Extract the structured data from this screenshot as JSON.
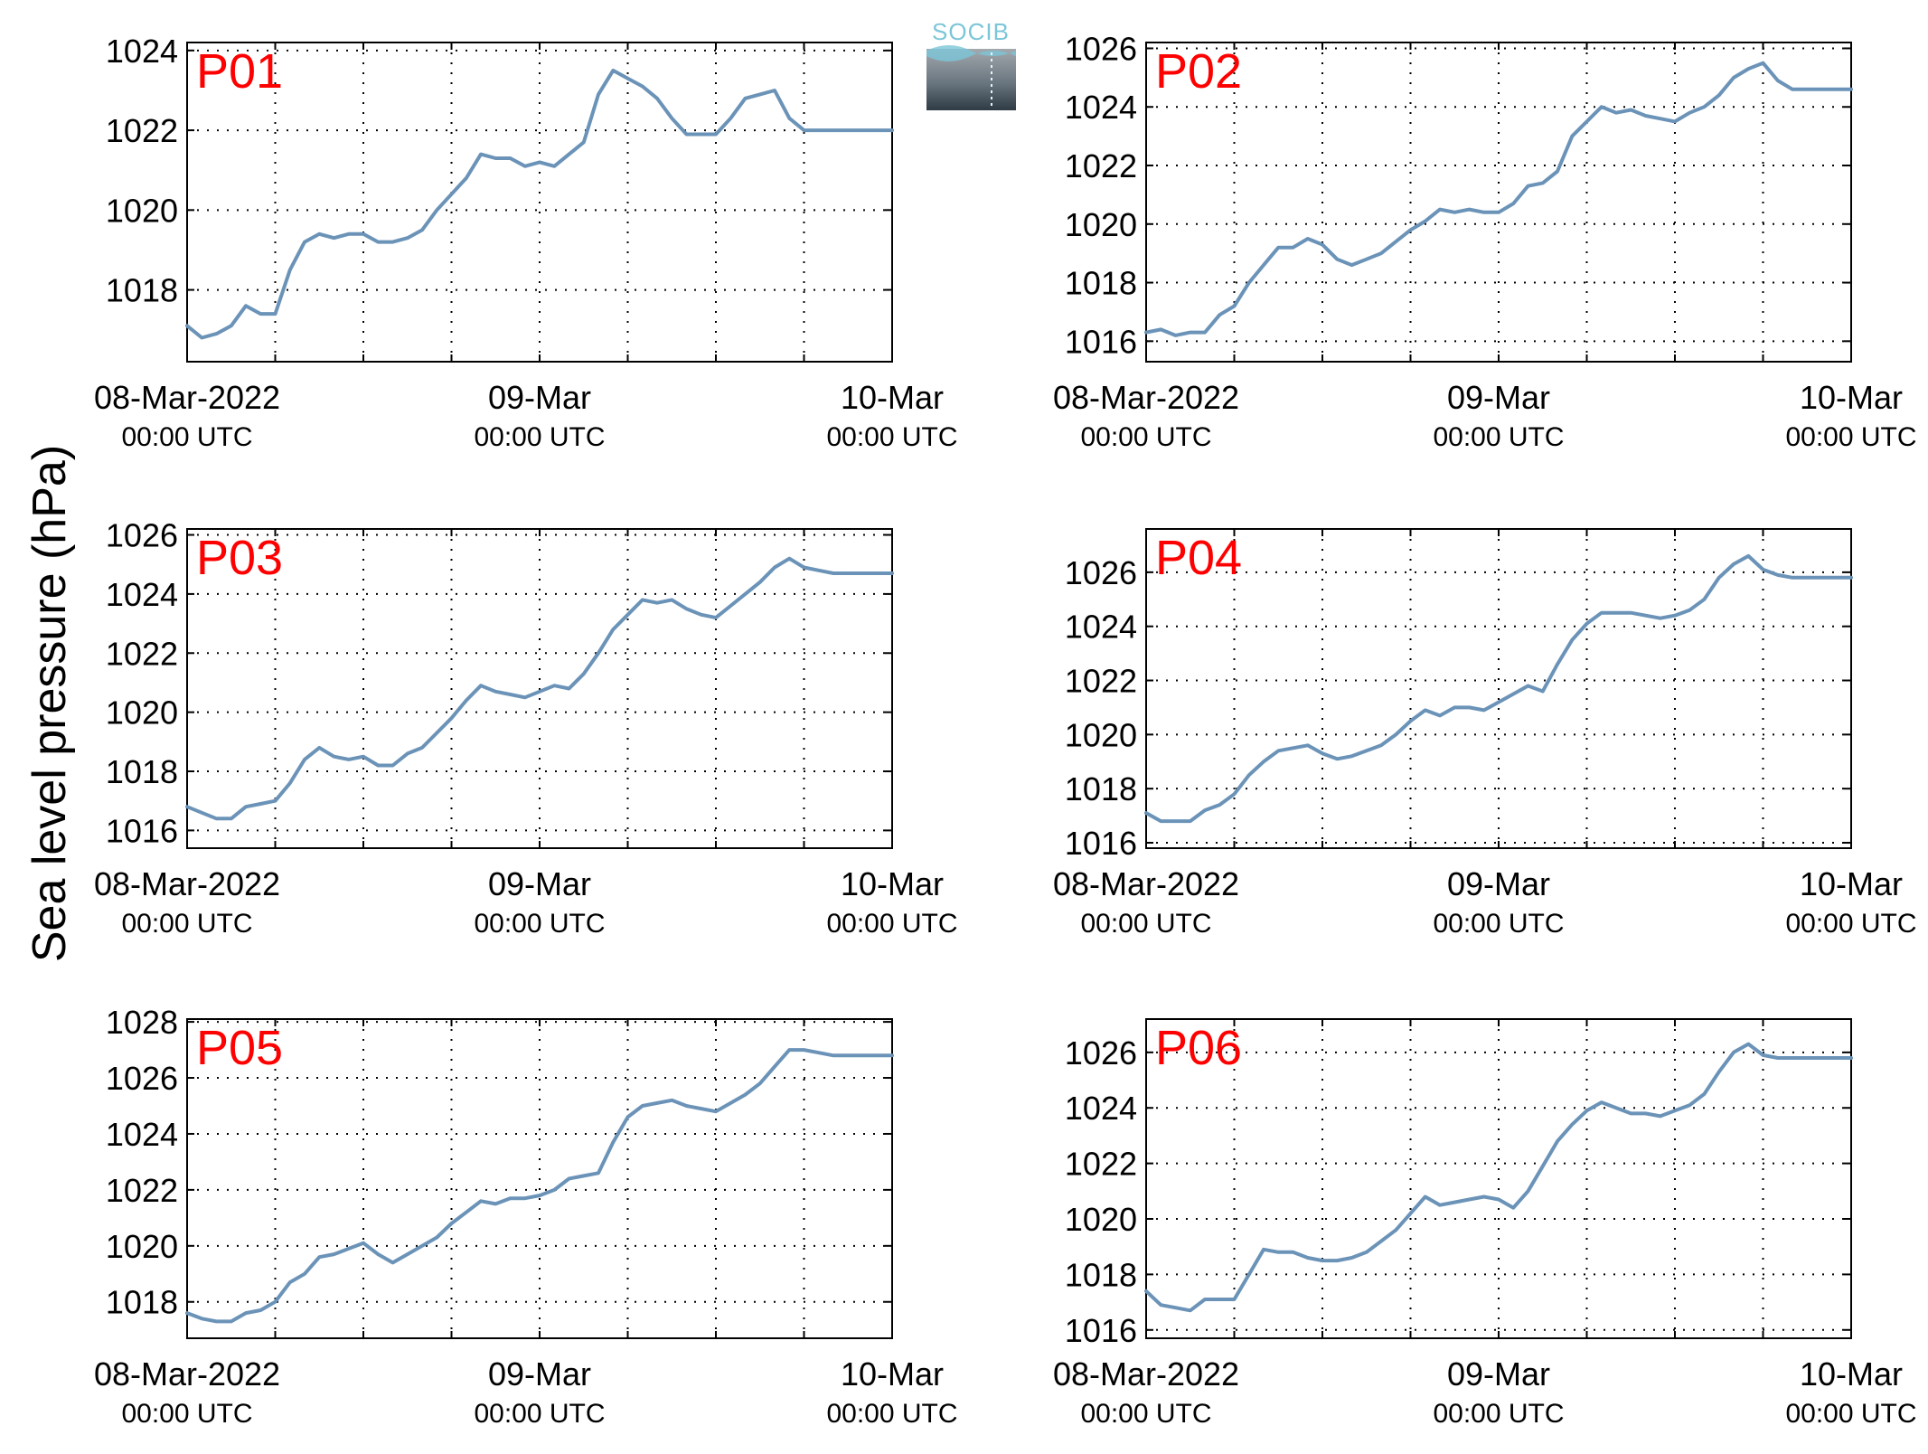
{
  "figure": {
    "ylabel": "Sea level pressure (hPa)",
    "logo_text": "SOCIB",
    "colors": {
      "line": "#6b93b8",
      "panel_label": "#ff0000",
      "axis": "#000000",
      "grid": "#000000"
    }
  },
  "chart_data": [
    {
      "type": "line",
      "panel_label": "P01",
      "x_ticks": [
        {
          "line1": "08-Mar-2022",
          "line2": "00:00 UTC"
        },
        {
          "line1": "09-Mar",
          "line2": "00:00 UTC"
        },
        {
          "line1": "10-Mar",
          "line2": "00:00 UTC"
        }
      ],
      "xlim": [
        "2022-03-08T00:00Z",
        "2022-03-10T00:00Z"
      ],
      "ylim": [
        1016.2,
        1024.2
      ],
      "y_ticks": [
        1018,
        1020,
        1022,
        1024
      ],
      "grid": true,
      "series": [
        {
          "x_hours": [
            0,
            1,
            2,
            3,
            4,
            5,
            6,
            7,
            8,
            9,
            10,
            11,
            12,
            13,
            14,
            15,
            16,
            17,
            18,
            19,
            20,
            21,
            22,
            23,
            24,
            25,
            26,
            27,
            28,
            29,
            30,
            31,
            32,
            33,
            34,
            35,
            36,
            37,
            38,
            39,
            40,
            41,
            42,
            43,
            44,
            45,
            46,
            47,
            48
          ],
          "values": [
            1017.1,
            1016.8,
            1016.9,
            1017.1,
            1017.6,
            1017.4,
            1017.4,
            1018.5,
            1019.2,
            1019.4,
            1019.3,
            1019.4,
            1019.4,
            1019.2,
            1019.2,
            1019.3,
            1019.5,
            1020.0,
            1020.4,
            1020.8,
            1021.4,
            1021.3,
            1021.3,
            1021.1,
            1021.2,
            1021.1,
            1021.4,
            1021.7,
            1022.9,
            1023.5,
            1023.3,
            1023.1,
            1022.8,
            1022.3,
            1021.9,
            1021.9,
            1021.9,
            1022.3,
            1022.8,
            1022.9,
            1023.0,
            1022.3,
            1022.0,
            1022.0,
            1022.0,
            1022.0,
            1022.0,
            1022.0,
            1022.0
          ]
        }
      ]
    },
    {
      "type": "line",
      "panel_label": "P02",
      "x_ticks": [
        {
          "line1": "08-Mar-2022",
          "line2": "00:00 UTC"
        },
        {
          "line1": "09-Mar",
          "line2": "00:00 UTC"
        },
        {
          "line1": "10-Mar",
          "line2": "00:00 UTC"
        }
      ],
      "xlim": [
        "2022-03-08T00:00Z",
        "2022-03-10T00:00Z"
      ],
      "ylim": [
        1015.3,
        1026.2
      ],
      "y_ticks": [
        1016,
        1018,
        1020,
        1022,
        1024,
        1026
      ],
      "grid": true,
      "series": [
        {
          "x_hours": [
            0,
            1,
            2,
            3,
            4,
            5,
            6,
            7,
            8,
            9,
            10,
            11,
            12,
            13,
            14,
            15,
            16,
            17,
            18,
            19,
            20,
            21,
            22,
            23,
            24,
            25,
            26,
            27,
            28,
            29,
            30,
            31,
            32,
            33,
            34,
            35,
            36,
            37,
            38,
            39,
            40,
            41,
            42,
            43,
            44,
            45,
            46,
            47,
            48
          ],
          "values": [
            1016.3,
            1016.4,
            1016.2,
            1016.3,
            1016.3,
            1016.9,
            1017.2,
            1018.0,
            1018.6,
            1019.2,
            1019.2,
            1019.5,
            1019.3,
            1018.8,
            1018.6,
            1018.8,
            1019.0,
            1019.4,
            1019.8,
            1020.1,
            1020.5,
            1020.4,
            1020.5,
            1020.4,
            1020.4,
            1020.7,
            1021.3,
            1021.4,
            1021.8,
            1023.0,
            1023.5,
            1024.0,
            1023.8,
            1023.9,
            1023.7,
            1023.6,
            1023.5,
            1023.8,
            1024.0,
            1024.4,
            1025.0,
            1025.3,
            1025.5,
            1024.9,
            1024.6,
            1024.6,
            1024.6,
            1024.6,
            1024.6
          ]
        }
      ]
    },
    {
      "type": "line",
      "panel_label": "P03",
      "x_ticks": [
        {
          "line1": "08-Mar-2022",
          "line2": "00:00 UTC"
        },
        {
          "line1": "09-Mar",
          "line2": "00:00 UTC"
        },
        {
          "line1": "10-Mar",
          "line2": "00:00 UTC"
        }
      ],
      "xlim": [
        "2022-03-08T00:00Z",
        "2022-03-10T00:00Z"
      ],
      "ylim": [
        1015.4,
        1026.2
      ],
      "y_ticks": [
        1016,
        1018,
        1020,
        1022,
        1024,
        1026
      ],
      "grid": true,
      "series": [
        {
          "x_hours": [
            0,
            1,
            2,
            3,
            4,
            5,
            6,
            7,
            8,
            9,
            10,
            11,
            12,
            13,
            14,
            15,
            16,
            17,
            18,
            19,
            20,
            21,
            22,
            23,
            24,
            25,
            26,
            27,
            28,
            29,
            30,
            31,
            32,
            33,
            34,
            35,
            36,
            37,
            38,
            39,
            40,
            41,
            42,
            43,
            44,
            45,
            46,
            47,
            48
          ],
          "values": [
            1016.8,
            1016.6,
            1016.4,
            1016.4,
            1016.8,
            1016.9,
            1017.0,
            1017.6,
            1018.4,
            1018.8,
            1018.5,
            1018.4,
            1018.5,
            1018.2,
            1018.2,
            1018.6,
            1018.8,
            1019.3,
            1019.8,
            1020.4,
            1020.9,
            1020.7,
            1020.6,
            1020.5,
            1020.7,
            1020.9,
            1020.8,
            1021.3,
            1022.0,
            1022.8,
            1023.3,
            1023.8,
            1023.7,
            1023.8,
            1023.5,
            1023.3,
            1023.2,
            1023.6,
            1024.0,
            1024.4,
            1024.9,
            1025.2,
            1024.9,
            1024.8,
            1024.7,
            1024.7,
            1024.7,
            1024.7,
            1024.7
          ]
        }
      ]
    },
    {
      "type": "line",
      "panel_label": "P04",
      "x_ticks": [
        {
          "line1": "08-Mar-2022",
          "line2": "00:00 UTC"
        },
        {
          "line1": "09-Mar",
          "line2": "00:00 UTC"
        },
        {
          "line1": "10-Mar",
          "line2": "00:00 UTC"
        }
      ],
      "xlim": [
        "2022-03-08T00:00Z",
        "2022-03-10T00:00Z"
      ],
      "ylim": [
        1015.8,
        1027.6
      ],
      "y_ticks": [
        1016,
        1018,
        1020,
        1022,
        1024,
        1026
      ],
      "grid": true,
      "series": [
        {
          "x_hours": [
            0,
            1,
            2,
            3,
            4,
            5,
            6,
            7,
            8,
            9,
            10,
            11,
            12,
            13,
            14,
            15,
            16,
            17,
            18,
            19,
            20,
            21,
            22,
            23,
            24,
            25,
            26,
            27,
            28,
            29,
            30,
            31,
            32,
            33,
            34,
            35,
            36,
            37,
            38,
            39,
            40,
            41,
            42,
            43,
            44,
            45,
            46,
            47,
            48
          ],
          "values": [
            1017.1,
            1016.8,
            1016.8,
            1016.8,
            1017.2,
            1017.4,
            1017.8,
            1018.5,
            1019.0,
            1019.4,
            1019.5,
            1019.6,
            1019.3,
            1019.1,
            1019.2,
            1019.4,
            1019.6,
            1020.0,
            1020.5,
            1020.9,
            1020.7,
            1021.0,
            1021.0,
            1020.9,
            1021.2,
            1021.5,
            1021.8,
            1021.6,
            1022.6,
            1023.5,
            1024.1,
            1024.5,
            1024.5,
            1024.5,
            1024.4,
            1024.3,
            1024.4,
            1024.6,
            1025.0,
            1025.8,
            1026.3,
            1026.6,
            1026.1,
            1025.9,
            1025.8,
            1025.8,
            1025.8,
            1025.8,
            1025.8
          ]
        }
      ]
    },
    {
      "type": "line",
      "panel_label": "P05",
      "x_ticks": [
        {
          "line1": "08-Mar-2022",
          "line2": "00:00 UTC"
        },
        {
          "line1": "09-Mar",
          "line2": "00:00 UTC"
        },
        {
          "line1": "10-Mar",
          "line2": "00:00 UTC"
        }
      ],
      "xlim": [
        "2022-03-08T00:00Z",
        "2022-03-10T00:00Z"
      ],
      "ylim": [
        1016.7,
        1028.1
      ],
      "y_ticks": [
        1018,
        1020,
        1022,
        1024,
        1026,
        1028
      ],
      "grid": true,
      "series": [
        {
          "x_hours": [
            0,
            1,
            2,
            3,
            4,
            5,
            6,
            7,
            8,
            9,
            10,
            11,
            12,
            13,
            14,
            15,
            16,
            17,
            18,
            19,
            20,
            21,
            22,
            23,
            24,
            25,
            26,
            27,
            28,
            29,
            30,
            31,
            32,
            33,
            34,
            35,
            36,
            37,
            38,
            39,
            40,
            41,
            42,
            43,
            44,
            45,
            46,
            47,
            48
          ],
          "values": [
            1017.6,
            1017.4,
            1017.3,
            1017.3,
            1017.6,
            1017.7,
            1018.0,
            1018.7,
            1019.0,
            1019.6,
            1019.7,
            1019.9,
            1020.1,
            1019.7,
            1019.4,
            1019.7,
            1020.0,
            1020.3,
            1020.8,
            1021.2,
            1021.6,
            1021.5,
            1021.7,
            1021.7,
            1021.8,
            1022.0,
            1022.4,
            1022.5,
            1022.6,
            1023.7,
            1024.6,
            1025.0,
            1025.1,
            1025.2,
            1025.0,
            1024.9,
            1024.8,
            1025.1,
            1025.4,
            1025.8,
            1026.4,
            1027.0,
            1027.0,
            1026.9,
            1026.8,
            1026.8,
            1026.8,
            1026.8,
            1026.8
          ]
        }
      ]
    },
    {
      "type": "line",
      "panel_label": "P06",
      "x_ticks": [
        {
          "line1": "08-Mar-2022",
          "line2": "00:00 UTC"
        },
        {
          "line1": "09-Mar",
          "line2": "00:00 UTC"
        },
        {
          "line1": "10-Mar",
          "line2": "00:00 UTC"
        }
      ],
      "xlim": [
        "2022-03-08T00:00Z",
        "2022-03-10T00:00Z"
      ],
      "ylim": [
        1015.7,
        1027.2
      ],
      "y_ticks": [
        1016,
        1018,
        1020,
        1022,
        1024,
        1026
      ],
      "grid": true,
      "series": [
        {
          "x_hours": [
            0,
            1,
            2,
            3,
            4,
            5,
            6,
            7,
            8,
            9,
            10,
            11,
            12,
            13,
            14,
            15,
            16,
            17,
            18,
            19,
            20,
            21,
            22,
            23,
            24,
            25,
            26,
            27,
            28,
            29,
            30,
            31,
            32,
            33,
            34,
            35,
            36,
            37,
            38,
            39,
            40,
            41,
            42,
            43,
            44,
            45,
            46,
            47,
            48
          ],
          "values": [
            1017.4,
            1016.9,
            1016.8,
            1016.7,
            1017.1,
            1017.1,
            1017.1,
            1018.0,
            1018.9,
            1018.8,
            1018.8,
            1018.6,
            1018.5,
            1018.5,
            1018.6,
            1018.8,
            1019.2,
            1019.6,
            1020.2,
            1020.8,
            1020.5,
            1020.6,
            1020.7,
            1020.8,
            1020.7,
            1020.4,
            1021.0,
            1021.9,
            1022.8,
            1023.4,
            1023.9,
            1024.2,
            1024.0,
            1023.8,
            1023.8,
            1023.7,
            1023.9,
            1024.1,
            1024.5,
            1025.3,
            1026.0,
            1026.3,
            1025.9,
            1025.8,
            1025.8,
            1025.8,
            1025.8,
            1025.8,
            1025.8
          ]
        }
      ]
    }
  ]
}
